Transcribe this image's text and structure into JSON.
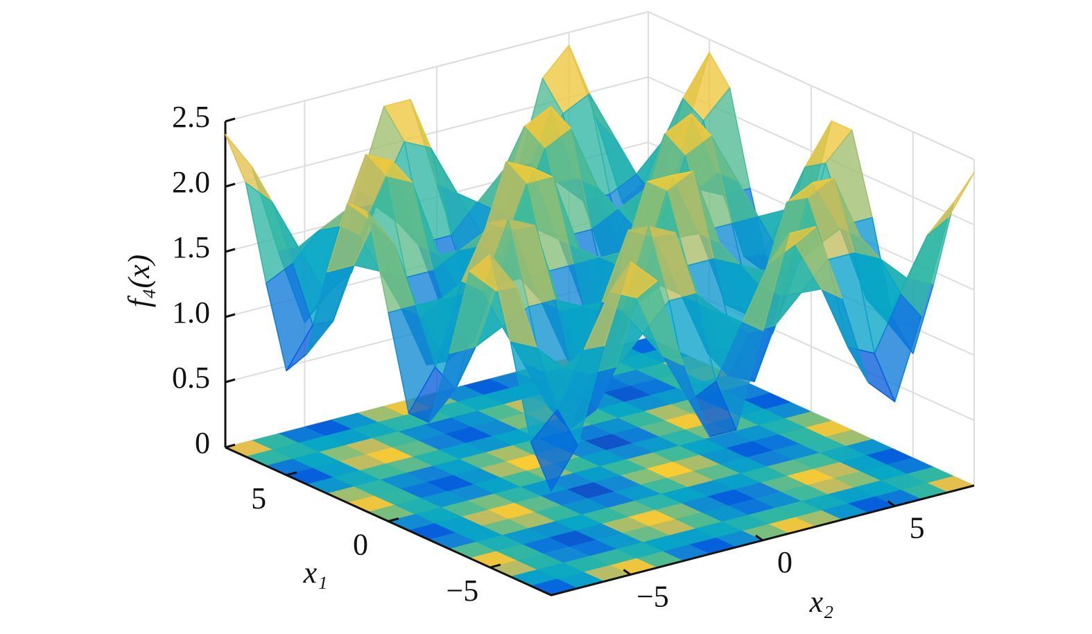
{
  "chart_data": {
    "type": "surface",
    "zlabel": "f₄(x)",
    "xlabel": "x₁",
    "ylabel": "x₂",
    "x": [
      -8,
      -7,
      -6,
      -5,
      -4,
      -3,
      -2,
      -1,
      0,
      1,
      2,
      3,
      4,
      5,
      6,
      7,
      8
    ],
    "y": [
      -8,
      -7,
      -6,
      -5,
      -4,
      -3,
      -2,
      -1,
      0,
      1,
      2,
      3,
      4,
      5,
      6,
      7,
      8
    ],
    "z": [
      [
        0.8,
        1.1,
        1.8,
        2.4,
        2.2,
        1.5,
        0.9,
        0.9,
        1.6,
        2.3,
        2.3,
        1.7,
        1.0,
        0.8,
        1.4,
        2.1,
        2.4
      ],
      [
        1.1,
        1.3,
        1.7,
        2.1,
        2.0,
        1.5,
        1.1,
        1.2,
        1.6,
        2.0,
        2.1,
        1.7,
        1.2,
        1.1,
        1.5,
        1.9,
        2.1
      ],
      [
        1.8,
        1.7,
        1.5,
        1.4,
        1.4,
        1.6,
        1.8,
        1.8,
        1.6,
        1.4,
        1.4,
        1.6,
        1.8,
        1.8,
        1.7,
        1.5,
        1.4
      ],
      [
        2.4,
        2.1,
        1.4,
        0.9,
        1.0,
        1.7,
        2.3,
        2.2,
        1.6,
        1.0,
        0.9,
        1.5,
        2.2,
        2.3,
        1.8,
        1.1,
        0.8
      ],
      [
        2.2,
        2.0,
        1.4,
        1.0,
        1.1,
        1.7,
        2.2,
        2.1,
        1.6,
        1.1,
        1.1,
        1.5,
        2.1,
        2.2,
        1.8,
        1.2,
        1.0
      ],
      [
        1.5,
        1.5,
        1.6,
        1.7,
        1.7,
        1.6,
        1.5,
        1.5,
        1.6,
        1.7,
        1.7,
        1.6,
        1.5,
        1.5,
        1.6,
        1.7,
        1.7
      ],
      [
        0.9,
        1.1,
        1.8,
        2.3,
        2.2,
        1.5,
        0.9,
        1.0,
        1.6,
        2.2,
        2.3,
        1.7,
        1.1,
        0.9,
        1.4,
        2.1,
        2.3
      ],
      [
        0.9,
        1.2,
        1.8,
        2.2,
        2.1,
        1.5,
        1.0,
        1.0,
        1.6,
        2.2,
        2.2,
        1.7,
        1.1,
        1.0,
        1.4,
        2.0,
        2.3
      ],
      [
        1.6,
        1.6,
        1.6,
        1.6,
        1.6,
        1.6,
        1.6,
        1.6,
        1.6,
        1.6,
        1.6,
        1.6,
        1.6,
        1.6,
        1.6,
        1.6,
        1.6
      ],
      [
        2.3,
        2.0,
        1.4,
        1.0,
        1.1,
        1.7,
        2.2,
        2.2,
        1.6,
        1.0,
        1.0,
        1.5,
        2.1,
        2.2,
        1.8,
        1.2,
        0.9
      ],
      [
        2.3,
        2.1,
        1.4,
        0.9,
        1.1,
        1.7,
        2.3,
        2.2,
        1.6,
        1.0,
        0.9,
        1.5,
        2.2,
        2.3,
        1.8,
        1.1,
        0.9
      ],
      [
        1.7,
        1.7,
        1.6,
        1.5,
        1.5,
        1.6,
        1.7,
        1.7,
        1.6,
        1.5,
        1.5,
        1.6,
        1.7,
        1.7,
        1.6,
        1.5,
        1.5
      ],
      [
        1.0,
        1.2,
        1.8,
        2.2,
        2.1,
        1.5,
        1.1,
        1.1,
        1.6,
        2.1,
        2.2,
        1.7,
        1.1,
        1.0,
        1.4,
        2.0,
        2.2
      ],
      [
        0.8,
        1.1,
        1.8,
        2.3,
        2.2,
        1.5,
        0.9,
        1.0,
        1.6,
        2.2,
        2.3,
        1.7,
        1.0,
        0.9,
        1.4,
        2.1,
        2.4
      ],
      [
        1.4,
        1.5,
        1.7,
        1.8,
        1.8,
        1.6,
        1.4,
        1.4,
        1.6,
        1.8,
        1.8,
        1.6,
        1.4,
        1.4,
        1.5,
        1.7,
        1.8
      ],
      [
        2.1,
        1.9,
        1.5,
        1.1,
        1.2,
        1.7,
        2.1,
        2.0,
        1.6,
        1.2,
        1.1,
        1.5,
        2.0,
        2.1,
        1.7,
        1.3,
        1.1
      ],
      [
        2.4,
        2.1,
        1.4,
        0.8,
        1.0,
        1.7,
        2.3,
        2.3,
        1.6,
        0.9,
        0.9,
        1.5,
        2.2,
        2.4,
        1.8,
        1.1,
        0.8
      ]
    ],
    "xlim": [
      -8,
      8
    ],
    "ylim": [
      -8,
      8
    ],
    "zlim": [
      0,
      2.5
    ],
    "xticks": [
      {
        "value": -5,
        "label": "−5"
      },
      0,
      5
    ],
    "yticks": [
      {
        "value": -5,
        "label": "−5"
      },
      0,
      5
    ],
    "zticks": [
      0,
      0.5,
      {
        "value": 1,
        "label": "1.0"
      },
      1.5,
      {
        "value": 2,
        "label": "2.0"
      },
      2.5
    ],
    "colormap": "parula",
    "grid": true,
    "contour": true
  }
}
